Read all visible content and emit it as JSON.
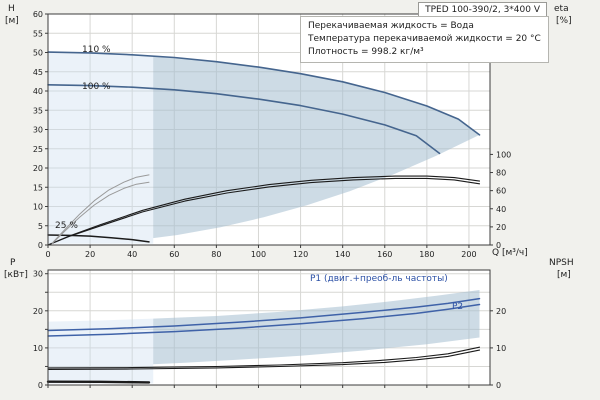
{
  "window": {
    "title": "TPED 100-390/2, 3*400 V"
  },
  "info_box": {
    "lines": [
      "Перекачиваемая жидкость = Вода",
      "Температура перекачиваемой жидкости = 20 °C",
      "Плотность = 998.2 кг/м³"
    ]
  },
  "axis_labels": {
    "head_symbol": "H",
    "head_unit": "[м]",
    "eta_symbol": "eta",
    "eta_unit": "[%]",
    "power_symbol": "P",
    "power_unit": "[кВт]",
    "npsh_symbol": "NPSH",
    "npsh_unit": "[м]",
    "flow_unit": "Q [м³/ч]"
  },
  "curve_labels": {
    "speed_110": "110 %",
    "speed_100": "100 %",
    "speed_25": "25 %",
    "p1": "P1 (двиг.+преоб-ль частоты)",
    "p2": "P2"
  },
  "colors": {
    "background": "#f1f1ed",
    "plot_bg": "#ffffff",
    "grid": "#d7d7d4",
    "border": "#3c3c3c",
    "text": "#1e1e1e",
    "curve_blue": "#45658e",
    "curve_black": "#1b1b1b",
    "curve_gray": "#9a9a9a",
    "curve_pblue": "#3f62a8",
    "label_blue": "#2c51a6",
    "region_main": "rgba(164,189,208,0.55)",
    "region_light": "rgba(203,222,238,0.38)"
  },
  "chart_data": [
    {
      "type": "line",
      "name": "head-chart",
      "title": "TPED 100-390/2, 3*400 V",
      "xlabel": "Q [м³/ч]",
      "ylabel_left": "H [м]",
      "ylabel_right": "eta [%]",
      "xlim": [
        0,
        210
      ],
      "ylim_left": [
        0,
        60
      ],
      "ylim_right": [
        0,
        255
      ],
      "y_label_step": 5,
      "grid": true,
      "x_ticks": [
        0,
        20,
        40,
        60,
        80,
        100,
        120,
        140,
        160,
        180,
        200
      ],
      "y_ticks_left": [
        0,
        5,
        10,
        15,
        20,
        25,
        30,
        35,
        40,
        45,
        50,
        55,
        60
      ],
      "y_ticks_right": [
        0,
        20,
        40,
        60,
        80,
        100
      ],
      "regions": [
        {
          "name": "operating-envelope",
          "fill": "main",
          "points": [
            [
              50,
              49.1
            ],
            [
              60,
              48.7
            ],
            [
              80,
              47.6
            ],
            [
              100,
              46.2
            ],
            [
              120,
              44.5
            ],
            [
              140,
              42.4
            ],
            [
              160,
              39.6
            ],
            [
              180,
              36.1
            ],
            [
              195,
              32.7
            ],
            [
              205,
              28.6
            ],
            [
              184.5,
              23.2
            ],
            [
              164,
              18.3
            ],
            [
              143.5,
              14
            ],
            [
              123,
              10.3
            ],
            [
              102.5,
              7.2
            ],
            [
              82,
              4.6
            ],
            [
              61.5,
              2.6
            ],
            [
              50,
              1.8
            ]
          ]
        },
        {
          "name": "low-flow-region",
          "fill": "light",
          "points": [
            [
              0,
              50.1
            ],
            [
              20,
              49.9
            ],
            [
              40,
              49.4
            ],
            [
              50,
              49.1
            ],
            [
              50,
              0.3
            ],
            [
              25,
              0.3
            ],
            [
              0,
              0.3
            ]
          ]
        }
      ],
      "series": [
        {
          "name": "speed-110-curve",
          "label": "110 %",
          "color": "blue",
          "width": 1.6,
          "points": [
            [
              0,
              50.1
            ],
            [
              20,
              49.9
            ],
            [
              40,
              49.4
            ],
            [
              60,
              48.7
            ],
            [
              80,
              47.6
            ],
            [
              100,
              46.2
            ],
            [
              120,
              44.5
            ],
            [
              140,
              42.4
            ],
            [
              160,
              39.6
            ],
            [
              180,
              36.1
            ],
            [
              195,
              32.7
            ],
            [
              205,
              28.6
            ]
          ]
        },
        {
          "name": "speed-100-curve",
          "label": "100 %",
          "color": "blue",
          "width": 1.6,
          "points": [
            [
              0,
              41.6
            ],
            [
              20,
              41.4
            ],
            [
              40,
              41
            ],
            [
              60,
              40.3
            ],
            [
              80,
              39.3
            ],
            [
              100,
              37.9
            ],
            [
              120,
              36.2
            ],
            [
              140,
              34
            ],
            [
              160,
              31.2
            ],
            [
              175,
              28.4
            ],
            [
              186,
              23.8
            ]
          ]
        },
        {
          "name": "speed-25-curve",
          "label": "25 %",
          "color": "black",
          "width": 1.5,
          "points": [
            [
              0,
              2.6
            ],
            [
              10,
              2.5
            ],
            [
              20,
              2.3
            ],
            [
              30,
              1.9
            ],
            [
              40,
              1.4
            ],
            [
              48,
              0.8
            ]
          ]
        },
        {
          "name": "eta-curve-1",
          "label": "eta",
          "color": "black",
          "width": 1.1,
          "points": [
            [
              0,
              0
            ],
            [
              10,
              2.3
            ],
            [
              25,
              5.3
            ],
            [
              45,
              9
            ],
            [
              65,
              11.9
            ],
            [
              85,
              14.1
            ],
            [
              105,
              15.7
            ],
            [
              125,
              16.8
            ],
            [
              145,
              17.5
            ],
            [
              165,
              17.9
            ],
            [
              180,
              17.9
            ],
            [
              193,
              17.5
            ],
            [
              205,
              16.6
            ]
          ]
        },
        {
          "name": "eta-curve-2",
          "label": "eta",
          "color": "black",
          "width": 1.1,
          "points": [
            [
              0,
              0
            ],
            [
              10,
              2.2
            ],
            [
              25,
              5
            ],
            [
              45,
              8.6
            ],
            [
              65,
              11.4
            ],
            [
              85,
              13.5
            ],
            [
              105,
              15.1
            ],
            [
              125,
              16.2
            ],
            [
              145,
              16.9
            ],
            [
              165,
              17.3
            ],
            [
              180,
              17.3
            ],
            [
              193,
              16.9
            ],
            [
              205,
              15.9
            ]
          ]
        },
        {
          "name": "eta-reduced-speed-curve-1",
          "label": "",
          "color": "gray",
          "width": 1,
          "points": [
            [
              2,
              0.5
            ],
            [
              8,
              4
            ],
            [
              15,
              8
            ],
            [
              22,
              11.5
            ],
            [
              29,
              14.3
            ],
            [
              36,
              16.3
            ],
            [
              42,
              17.6
            ],
            [
              48,
              18.2
            ]
          ]
        },
        {
          "name": "eta-reduced-speed-curve-2",
          "label": "",
          "color": "gray",
          "width": 1,
          "points": [
            [
              2,
              0.4
            ],
            [
              8,
              3.6
            ],
            [
              15,
              7.2
            ],
            [
              22,
              10.4
            ],
            [
              29,
              12.9
            ],
            [
              36,
              14.7
            ],
            [
              42,
              15.8
            ],
            [
              48,
              16.3
            ]
          ]
        }
      ]
    },
    {
      "type": "line",
      "name": "power-npsh-chart",
      "title": "",
      "xlabel": "",
      "ylabel_left": "P [кВт]",
      "ylabel_right": "NPSH [м]",
      "xlim": [
        0,
        210
      ],
      "ylim_left": [
        0,
        31
      ],
      "ylim_right": [
        0,
        31
      ],
      "y_label_step": 10,
      "grid": true,
      "x_ticks": [
        0,
        20,
        40,
        60,
        80,
        100,
        120,
        140,
        160,
        180,
        200
      ],
      "y_ticks_left": [
        0,
        5,
        10,
        15,
        20,
        25,
        30
      ],
      "y_ticks_right": [
        0,
        10,
        20
      ],
      "regions": [
        {
          "name": "power-envelope",
          "fill": "main",
          "points": [
            [
              50,
              17.9
            ],
            [
              80,
              18.6
            ],
            [
              110,
              19.7
            ],
            [
              140,
              21.2
            ],
            [
              165,
              22.7
            ],
            [
              185,
              24.1
            ],
            [
              205,
              25.6
            ],
            [
              205,
              12.8
            ],
            [
              180,
              11
            ],
            [
              150,
              9.3
            ],
            [
              120,
              7.9
            ],
            [
              90,
              6.8
            ],
            [
              65,
              6
            ],
            [
              50,
              5.6
            ]
          ]
        },
        {
          "name": "power-low-flow-region",
          "fill": "light",
          "points": [
            [
              0,
              17.1
            ],
            [
              25,
              17.4
            ],
            [
              50,
              17.9
            ],
            [
              50,
              0.4
            ],
            [
              0,
              0.4
            ]
          ]
        }
      ],
      "series": [
        {
          "name": "p1-curve",
          "label": "P1 (двиг.+преоб-ль частоты)",
          "color": "pblue",
          "width": 1.5,
          "points": [
            [
              0,
              14.7
            ],
            [
              30,
              15.2
            ],
            [
              60,
              15.9
            ],
            [
              90,
              16.9
            ],
            [
              120,
              18.1
            ],
            [
              150,
              19.6
            ],
            [
              175,
              21
            ],
            [
              190,
              22
            ],
            [
              205,
              23.3
            ]
          ]
        },
        {
          "name": "p2-curve",
          "label": "P2",
          "color": "pblue",
          "width": 1.5,
          "points": [
            [
              0,
              13.2
            ],
            [
              30,
              13.7
            ],
            [
              60,
              14.4
            ],
            [
              90,
              15.3
            ],
            [
              120,
              16.5
            ],
            [
              150,
              17.9
            ],
            [
              175,
              19.3
            ],
            [
              190,
              20.4
            ],
            [
              205,
              21.7
            ]
          ]
        },
        {
          "name": "npsh-curve-1",
          "label": "NPSH",
          "color": "black",
          "width": 1.1,
          "points": [
            [
              0,
              4.6
            ],
            [
              40,
              4.7
            ],
            [
              80,
              5
            ],
            [
              110,
              5.4
            ],
            [
              140,
              6
            ],
            [
              160,
              6.7
            ],
            [
              175,
              7.4
            ],
            [
              190,
              8.4
            ],
            [
              205,
              10.2
            ]
          ]
        },
        {
          "name": "npsh-curve-2",
          "label": "NPSH",
          "color": "black",
          "width": 1.1,
          "points": [
            [
              0,
              4.2
            ],
            [
              40,
              4.3
            ],
            [
              80,
              4.6
            ],
            [
              110,
              5
            ],
            [
              140,
              5.5
            ],
            [
              160,
              6.1
            ],
            [
              175,
              6.8
            ],
            [
              190,
              7.7
            ],
            [
              205,
              9.4
            ]
          ]
        },
        {
          "name": "p-25-speed-curve",
          "label": "",
          "color": "black",
          "width": 2.4,
          "points": [
            [
              0,
              0.9
            ],
            [
              25,
              0.85
            ],
            [
              48,
              0.7
            ]
          ]
        }
      ]
    }
  ]
}
